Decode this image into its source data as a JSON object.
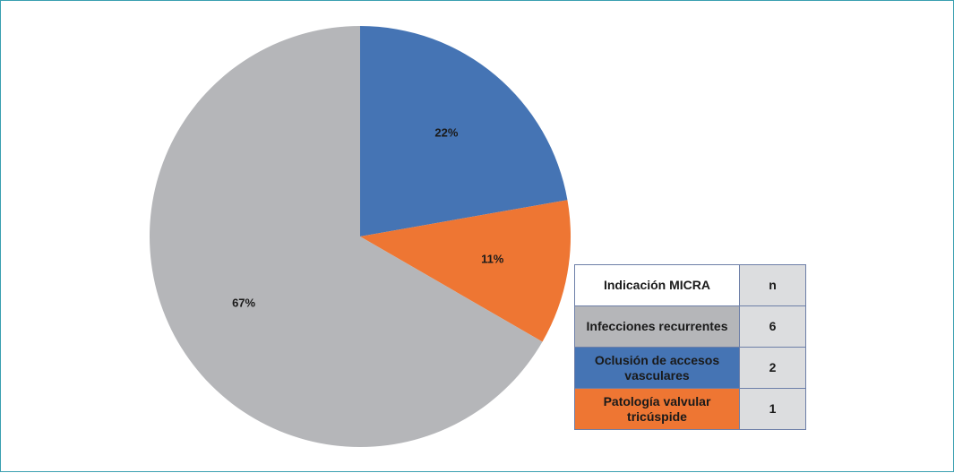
{
  "chart_data": {
    "type": "pie",
    "slices": [
      {
        "name": "Oclusión de accesos vasculares",
        "value": 2,
        "label": "22%",
        "color": "#4574b4"
      },
      {
        "name": "Patología valvular tricúspide",
        "value": 1,
        "label": "11%",
        "color": "#ee7633"
      },
      {
        "name": "Infecciones recurrentes",
        "value": 6,
        "label": "67%",
        "color": "#b5b6b9"
      }
    ],
    "start_angle_deg": 0,
    "direction": "clockwise"
  },
  "legend_table": {
    "header": {
      "label": "Indicación MICRA",
      "n": "n"
    },
    "rows": [
      {
        "label": "Infecciones recurrentes",
        "n": "6",
        "color": "#b5b6b9"
      },
      {
        "label": "Oclusión de accesos vasculares",
        "n": "2",
        "color": "#4574b4"
      },
      {
        "label": "Patología valvular tricúspide",
        "n": "1",
        "color": "#ee7633"
      }
    ]
  }
}
